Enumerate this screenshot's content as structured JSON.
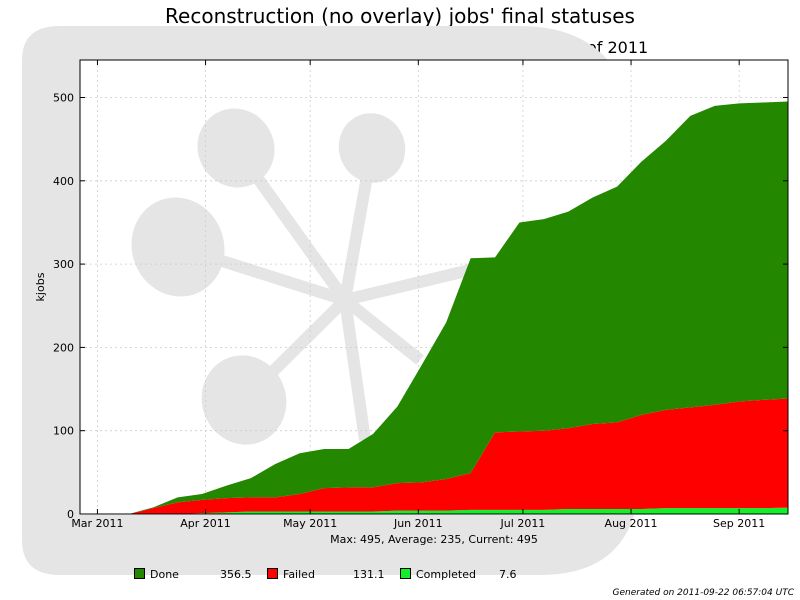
{
  "chart_data": {
    "type": "area",
    "stacked": true,
    "title": "Reconstruction (no overlay) jobs' final statuses",
    "subtitle": "29 Weeks from Week 08 of 2011 to Week 37 of 2011",
    "ylabel": "kjobs",
    "xlabel": "",
    "ylim": [
      0,
      545
    ],
    "yticks": [
      0,
      100,
      200,
      300,
      400,
      500
    ],
    "x_tick_labels": [
      "Mar 2011",
      "Apr 2011",
      "May 2011",
      "Jun 2011",
      "Jul 2011",
      "Aug 2011",
      "Sep 2011"
    ],
    "x": [
      "2011-02-24",
      "2011-03-03",
      "2011-03-10",
      "2011-03-17",
      "2011-03-24",
      "2011-03-31",
      "2011-04-07",
      "2011-04-14",
      "2011-04-21",
      "2011-04-28",
      "2011-05-05",
      "2011-05-12",
      "2011-05-19",
      "2011-05-26",
      "2011-06-02",
      "2011-06-09",
      "2011-06-16",
      "2011-06-23",
      "2011-06-30",
      "2011-07-07",
      "2011-07-14",
      "2011-07-21",
      "2011-07-28",
      "2011-08-04",
      "2011-08-11",
      "2011-08-18",
      "2011-08-25",
      "2011-09-01",
      "2011-09-08",
      "2011-09-15"
    ],
    "series": [
      {
        "name": "Completed",
        "color": "#12ee2a",
        "values": [
          0,
          0,
          0,
          0,
          0,
          1,
          2,
          3,
          3,
          3,
          3,
          3,
          3,
          4,
          4,
          4,
          5,
          5,
          5,
          5,
          6,
          6,
          6,
          6,
          7,
          7,
          7,
          7,
          7,
          7.6
        ]
      },
      {
        "name": "Failed",
        "color": "#ff0000",
        "values": [
          0,
          0,
          0,
          7,
          14,
          16,
          17,
          17,
          17,
          21,
          28,
          29,
          29,
          33,
          34,
          38,
          44,
          93,
          94,
          95,
          97,
          102,
          104,
          113,
          118,
          121,
          124,
          128,
          130,
          131.1
        ]
      },
      {
        "name": "Done",
        "color": "#238700",
        "values": [
          0,
          0,
          0,
          1,
          6,
          7,
          15,
          23,
          40,
          49,
          47,
          46,
          64,
          92,
          141,
          188,
          258,
          210,
          251,
          254,
          260,
          272,
          283,
          304,
          323,
          350,
          359,
          358,
          357,
          356.5
        ]
      }
    ],
    "grid": true,
    "legend_position": "bottom"
  },
  "legend": {
    "items": [
      {
        "label": "Done",
        "value": "356.5",
        "color": "#238700"
      },
      {
        "label": "Failed",
        "value": "131.1",
        "color": "#ff0000"
      },
      {
        "label": "Completed",
        "value": "7.6",
        "color": "#12ee2a"
      }
    ]
  },
  "stats": "Max: 495, Average: 235, Current: 495",
  "generated": "Generated on 2011-09-22 06:57:04 UTC"
}
